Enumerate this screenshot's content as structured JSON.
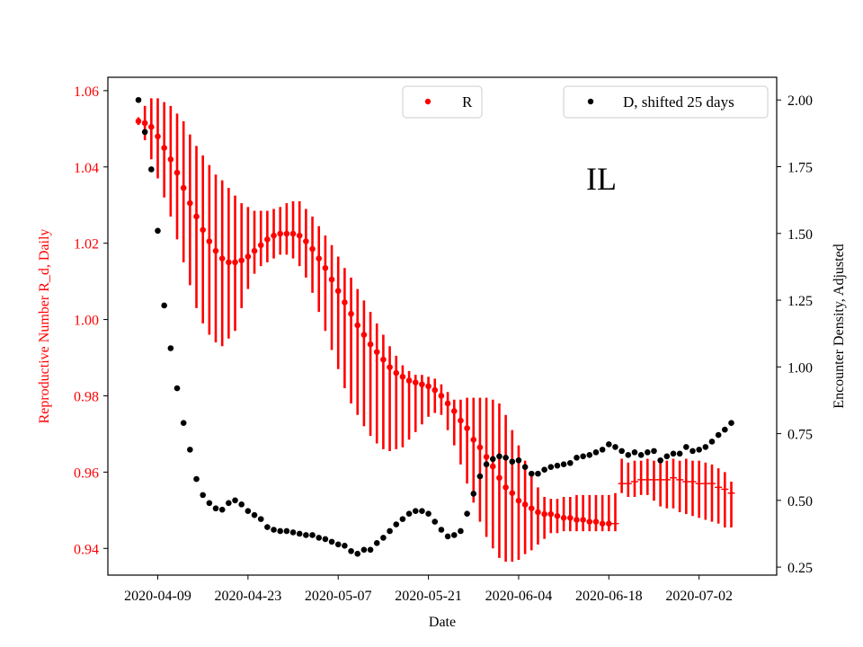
{
  "chart_data": {
    "type": "scatter",
    "state_label": "IL",
    "xlabel": "Date",
    "ylabel_left": "Reproductive Number R_d, Daily",
    "ylabel_right": "Encounter Density, Adjusted",
    "x_ticks": [
      "2020-04-09",
      "2020-04-23",
      "2020-05-07",
      "2020-05-21",
      "2020-06-04",
      "2020-06-18",
      "2020-07-02"
    ],
    "xlim": [
      "2020-04-06",
      "2020-07-10"
    ],
    "y_left_ticks": [
      "0.94",
      "0.96",
      "0.98",
      "1.00",
      "1.02",
      "1.04",
      "1.06"
    ],
    "y_left_lim": [
      0.933,
      1.0635
    ],
    "y_right_ticks": [
      "0.25",
      "0.50",
      "0.75",
      "1.00",
      "1.25",
      "1.50",
      "1.75",
      "2.00"
    ],
    "y_right_lim": [
      0.22,
      2.085
    ],
    "left_axis_color": "#ff0000",
    "legend": {
      "r_label": "R",
      "d_label": "D, shifted 25 days",
      "r_position": "upper-center",
      "d_position": "upper-right"
    },
    "series_R": {
      "name": "R",
      "color": "#ff0000",
      "error_style": "vertical bars; horizontal segments from 2020-06-19 onward",
      "dates": [
        "2020-04-06",
        "2020-04-07",
        "2020-04-08",
        "2020-04-09",
        "2020-04-10",
        "2020-04-11",
        "2020-04-12",
        "2020-04-13",
        "2020-04-14",
        "2020-04-15",
        "2020-04-16",
        "2020-04-17",
        "2020-04-18",
        "2020-04-19",
        "2020-04-20",
        "2020-04-21",
        "2020-04-22",
        "2020-04-23",
        "2020-04-24",
        "2020-04-25",
        "2020-04-26",
        "2020-04-27",
        "2020-04-28",
        "2020-04-29",
        "2020-04-30",
        "2020-05-01",
        "2020-05-02",
        "2020-05-03",
        "2020-05-04",
        "2020-05-05",
        "2020-05-06",
        "2020-05-07",
        "2020-05-08",
        "2020-05-09",
        "2020-05-10",
        "2020-05-11",
        "2020-05-12",
        "2020-05-13",
        "2020-05-14",
        "2020-05-15",
        "2020-05-16",
        "2020-05-17",
        "2020-05-18",
        "2020-05-19",
        "2020-05-20",
        "2020-05-21",
        "2020-05-22",
        "2020-05-23",
        "2020-05-24",
        "2020-05-25",
        "2020-05-26",
        "2020-05-27",
        "2020-05-28",
        "2020-05-29",
        "2020-05-30",
        "2020-05-31",
        "2020-06-01",
        "2020-06-02",
        "2020-06-03",
        "2020-06-04",
        "2020-06-05",
        "2020-06-06",
        "2020-06-07",
        "2020-06-08",
        "2020-06-09",
        "2020-06-10",
        "2020-06-11",
        "2020-06-12",
        "2020-06-13",
        "2020-06-14",
        "2020-06-15",
        "2020-06-16",
        "2020-06-17",
        "2020-06-18",
        "2020-06-19",
        "2020-06-20",
        "2020-06-21",
        "2020-06-22",
        "2020-06-23",
        "2020-06-24",
        "2020-06-25",
        "2020-06-26",
        "2020-06-27",
        "2020-06-28",
        "2020-06-29",
        "2020-06-30",
        "2020-07-01",
        "2020-07-02",
        "2020-07-03",
        "2020-07-04",
        "2020-07-05",
        "2020-07-06",
        "2020-07-07"
      ],
      "values": [
        1.052,
        1.0515,
        1.0505,
        1.048,
        1.045,
        1.042,
        1.0385,
        1.0345,
        1.0305,
        1.027,
        1.0235,
        1.0205,
        1.018,
        1.016,
        1.015,
        1.015,
        1.0155,
        1.0165,
        1.018,
        1.0195,
        1.021,
        1.022,
        1.0225,
        1.0225,
        1.0225,
        1.022,
        1.0205,
        1.0185,
        1.016,
        1.0135,
        1.0105,
        1.0075,
        1.0045,
        1.0015,
        0.9985,
        0.996,
        0.9935,
        0.9915,
        0.9895,
        0.9875,
        0.986,
        0.985,
        0.984,
        0.9835,
        0.983,
        0.9825,
        0.9815,
        0.98,
        0.978,
        0.976,
        0.9735,
        0.9715,
        0.9685,
        0.9665,
        0.964,
        0.9615,
        0.9585,
        0.956,
        0.9545,
        0.9525,
        0.9515,
        0.9505,
        0.9495,
        0.949,
        0.949,
        0.9485,
        0.948,
        0.948,
        0.9475,
        0.9475,
        0.947,
        0.947,
        0.9465,
        0.9465,
        0.9465,
        0.957,
        0.957,
        0.9575,
        0.958,
        0.958,
        0.958,
        0.958,
        0.958,
        0.9585,
        0.958,
        0.9575,
        0.9575,
        0.957,
        0.957,
        0.957,
        0.956,
        0.9555,
        0.9545
      ],
      "lower": [
        1.051,
        1.047,
        1.042,
        1.037,
        1.032,
        1.027,
        1.021,
        1.015,
        1.009,
        1.003,
        0.999,
        0.996,
        0.994,
        0.993,
        0.995,
        0.997,
        1.003,
        1.008,
        1.012,
        1.014,
        1.015,
        1.016,
        1.017,
        1.017,
        1.016,
        1.014,
        1.011,
        1.007,
        1.002,
        0.997,
        0.992,
        0.987,
        0.982,
        0.978,
        0.975,
        0.972,
        0.9695,
        0.9675,
        0.966,
        0.9655,
        0.966,
        0.9665,
        0.9685,
        0.9705,
        0.9725,
        0.9745,
        0.9755,
        0.975,
        0.971,
        0.967,
        0.962,
        0.957,
        0.952,
        0.947,
        0.943,
        0.94,
        0.9375,
        0.9365,
        0.9365,
        0.937,
        0.9385,
        0.9395,
        0.941,
        0.9425,
        0.944,
        0.944,
        0.9445,
        0.9445,
        0.9445,
        0.9445,
        0.9445,
        0.9445,
        0.9445,
        0.9445,
        0.9445,
        0.9545,
        0.9535,
        0.9535,
        0.954,
        0.954,
        0.9525,
        0.951,
        0.9505,
        0.9505,
        0.9495,
        0.949,
        0.9485,
        0.948,
        0.9475,
        0.947,
        0.9465,
        0.9455,
        0.9455
      ],
      "upper": [
        1.053,
        1.056,
        1.058,
        1.058,
        1.057,
        1.056,
        1.054,
        1.052,
        1.0485,
        1.0455,
        1.043,
        1.0405,
        1.038,
        1.0365,
        1.0345,
        1.0325,
        1.0305,
        1.0295,
        1.0285,
        1.0285,
        1.0285,
        1.029,
        1.0295,
        1.0305,
        1.031,
        1.031,
        1.029,
        1.027,
        1.0245,
        1.022,
        1.0195,
        1.0165,
        1.0135,
        1.011,
        1.008,
        1.005,
        1.002,
        0.999,
        0.996,
        0.993,
        0.9905,
        0.988,
        0.9865,
        0.9855,
        0.9855,
        0.985,
        0.9845,
        0.983,
        0.981,
        0.979,
        0.979,
        0.9795,
        0.9795,
        0.9795,
        0.9795,
        0.979,
        0.978,
        0.975,
        0.971,
        0.967,
        0.963,
        0.959,
        0.956,
        0.9535,
        0.953,
        0.953,
        0.9535,
        0.9535,
        0.954,
        0.954,
        0.954,
        0.954,
        0.954,
        0.954,
        0.9545,
        0.9635,
        0.9625,
        0.963,
        0.963,
        0.9635,
        0.963,
        0.9635,
        0.963,
        0.9635,
        0.963,
        0.9635,
        0.963,
        0.963,
        0.9625,
        0.962,
        0.961,
        0.96,
        0.9575
      ]
    },
    "series_D": {
      "name": "D, shifted 25 days",
      "color": "#000000",
      "dates": [
        "2020-04-06",
        "2020-04-07",
        "2020-04-08",
        "2020-04-09",
        "2020-04-10",
        "2020-04-11",
        "2020-04-12",
        "2020-04-13",
        "2020-04-14",
        "2020-04-15",
        "2020-04-16",
        "2020-04-17",
        "2020-04-18",
        "2020-04-19",
        "2020-04-20",
        "2020-04-21",
        "2020-04-22",
        "2020-04-23",
        "2020-04-24",
        "2020-04-25",
        "2020-04-26",
        "2020-04-27",
        "2020-04-28",
        "2020-04-29",
        "2020-04-30",
        "2020-05-01",
        "2020-05-02",
        "2020-05-03",
        "2020-05-04",
        "2020-05-05",
        "2020-05-06",
        "2020-05-07",
        "2020-05-08",
        "2020-05-09",
        "2020-05-10",
        "2020-05-11",
        "2020-05-12",
        "2020-05-13",
        "2020-05-14",
        "2020-05-15",
        "2020-05-16",
        "2020-05-17",
        "2020-05-18",
        "2020-05-19",
        "2020-05-20",
        "2020-05-21",
        "2020-05-22",
        "2020-05-23",
        "2020-05-24",
        "2020-05-25",
        "2020-05-26",
        "2020-05-27",
        "2020-05-28",
        "2020-05-29",
        "2020-05-30",
        "2020-05-31",
        "2020-06-01",
        "2020-06-02",
        "2020-06-03",
        "2020-06-04",
        "2020-06-05",
        "2020-06-06",
        "2020-06-07",
        "2020-06-08",
        "2020-06-09",
        "2020-06-10",
        "2020-06-11",
        "2020-06-12",
        "2020-06-13",
        "2020-06-14",
        "2020-06-15",
        "2020-06-16",
        "2020-06-17",
        "2020-06-18",
        "2020-06-19",
        "2020-06-20",
        "2020-06-21",
        "2020-06-22",
        "2020-06-23",
        "2020-06-24",
        "2020-06-25",
        "2020-06-26",
        "2020-06-27",
        "2020-06-28",
        "2020-06-29",
        "2020-06-30",
        "2020-07-01",
        "2020-07-02",
        "2020-07-03",
        "2020-07-04",
        "2020-07-05",
        "2020-07-06",
        "2020-07-07"
      ],
      "values": [
        2.0,
        1.88,
        1.74,
        1.51,
        1.23,
        1.07,
        0.92,
        0.79,
        0.69,
        0.58,
        0.52,
        0.49,
        0.47,
        0.465,
        0.49,
        0.5,
        0.485,
        0.46,
        0.445,
        0.43,
        0.4,
        0.39,
        0.385,
        0.385,
        0.38,
        0.375,
        0.37,
        0.37,
        0.36,
        0.355,
        0.345,
        0.335,
        0.33,
        0.31,
        0.3,
        0.315,
        0.315,
        0.34,
        0.36,
        0.385,
        0.41,
        0.43,
        0.45,
        0.46,
        0.46,
        0.45,
        0.42,
        0.39,
        0.365,
        0.37,
        0.385,
        0.45,
        0.525,
        0.59,
        0.635,
        0.655,
        0.665,
        0.66,
        0.645,
        0.65,
        0.625,
        0.6,
        0.6,
        0.615,
        0.625,
        0.63,
        0.635,
        0.64,
        0.66,
        0.665,
        0.67,
        0.68,
        0.69,
        0.71,
        0.7,
        0.685,
        0.67,
        0.68,
        0.67,
        0.68,
        0.685,
        0.65,
        0.665,
        0.675,
        0.675,
        0.7,
        0.685,
        0.69,
        0.7,
        0.72,
        0.745,
        0.765,
        0.79
      ]
    }
  }
}
